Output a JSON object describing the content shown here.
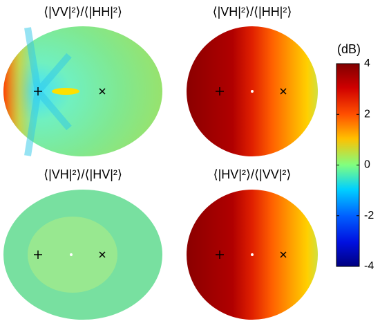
{
  "chart_data": [
    {
      "type": "polar-map",
      "title": "⟨|VV|²⟩/⟨|HH|²⟩"
    },
    {
      "type": "polar-map",
      "title": "⟨|VH|²⟩/⟨|HH|²⟩"
    },
    {
      "type": "polar-map",
      "title": "⟨|VH|²⟩/⟨|HV|²⟩"
    },
    {
      "type": "polar-map",
      "title": "⟨|HV|²⟩/⟨|VV|²⟩"
    }
  ],
  "colorbar": {
    "label": "(dB)",
    "lim": [
      -4,
      4
    ],
    "ticks": [
      4,
      2,
      0,
      -2,
      -4
    ]
  }
}
